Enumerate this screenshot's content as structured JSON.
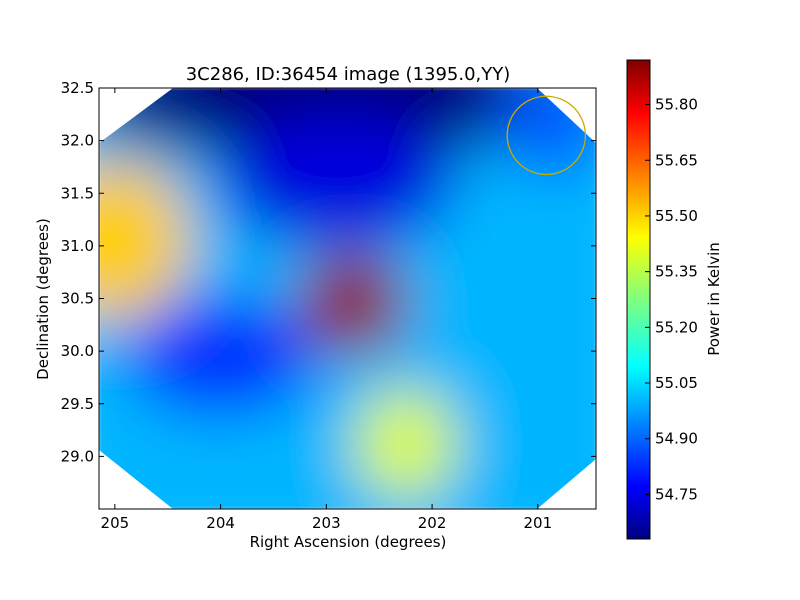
{
  "chart_data": {
    "type": "heatmap",
    "title": "3C286, ID:36454 image (1395.0,YY)",
    "xlabel": "Right Ascension (degrees)",
    "ylabel": "Declination (degrees)",
    "xlim": [
      205.15,
      200.45
    ],
    "ylim": [
      28.5,
      32.5
    ],
    "x_ticks": [
      205,
      204,
      203,
      202,
      201
    ],
    "x_tick_labels": [
      "205",
      "204",
      "203",
      "202",
      "201"
    ],
    "y_ticks": [
      29.0,
      29.5,
      30.0,
      30.5,
      31.0,
      31.5,
      32.0,
      32.5
    ],
    "y_tick_labels": [
      "29.0",
      "29.5",
      "30.0",
      "30.5",
      "31.0",
      "31.5",
      "32.0",
      "32.5"
    ],
    "colormap": "jet",
    "colorbar": {
      "label": "Power in Kelvin",
      "range": [
        54.63,
        55.92
      ],
      "ticks": [
        54.75,
        54.9,
        55.05,
        55.2,
        55.35,
        55.5,
        55.65,
        55.8
      ],
      "tick_labels": [
        "54.75",
        "54.90",
        "55.05",
        "55.20",
        "55.35",
        "55.50",
        "55.65",
        "55.80"
      ]
    },
    "features": [
      {
        "feature": "maximum",
        "ra": 202.75,
        "dec": 30.45,
        "value": 55.9
      },
      {
        "feature": "local-high",
        "ra": 205.0,
        "dec": 31.05,
        "value": 55.5
      },
      {
        "feature": "local-high",
        "ra": 202.25,
        "dec": 29.12,
        "value": 55.4
      },
      {
        "feature": "minimum",
        "ra": 203.0,
        "dec": 32.45,
        "value": 54.63
      },
      {
        "feature": "local-low",
        "ra": 204.0,
        "dec": 29.95,
        "value": 54.85
      },
      {
        "feature": "local-low",
        "ra": 202.9,
        "dec": 31.6,
        "value": 54.75
      },
      {
        "feature": "local-low",
        "ra": 200.85,
        "dec": 32.2,
        "value": 54.9
      }
    ],
    "annotations": [
      {
        "shape": "circle",
        "center_ra": 200.92,
        "center_dec": 32.05,
        "radius_deg": 0.37,
        "color": "#ccaa00"
      }
    ],
    "grid": false,
    "legend": "none"
  }
}
